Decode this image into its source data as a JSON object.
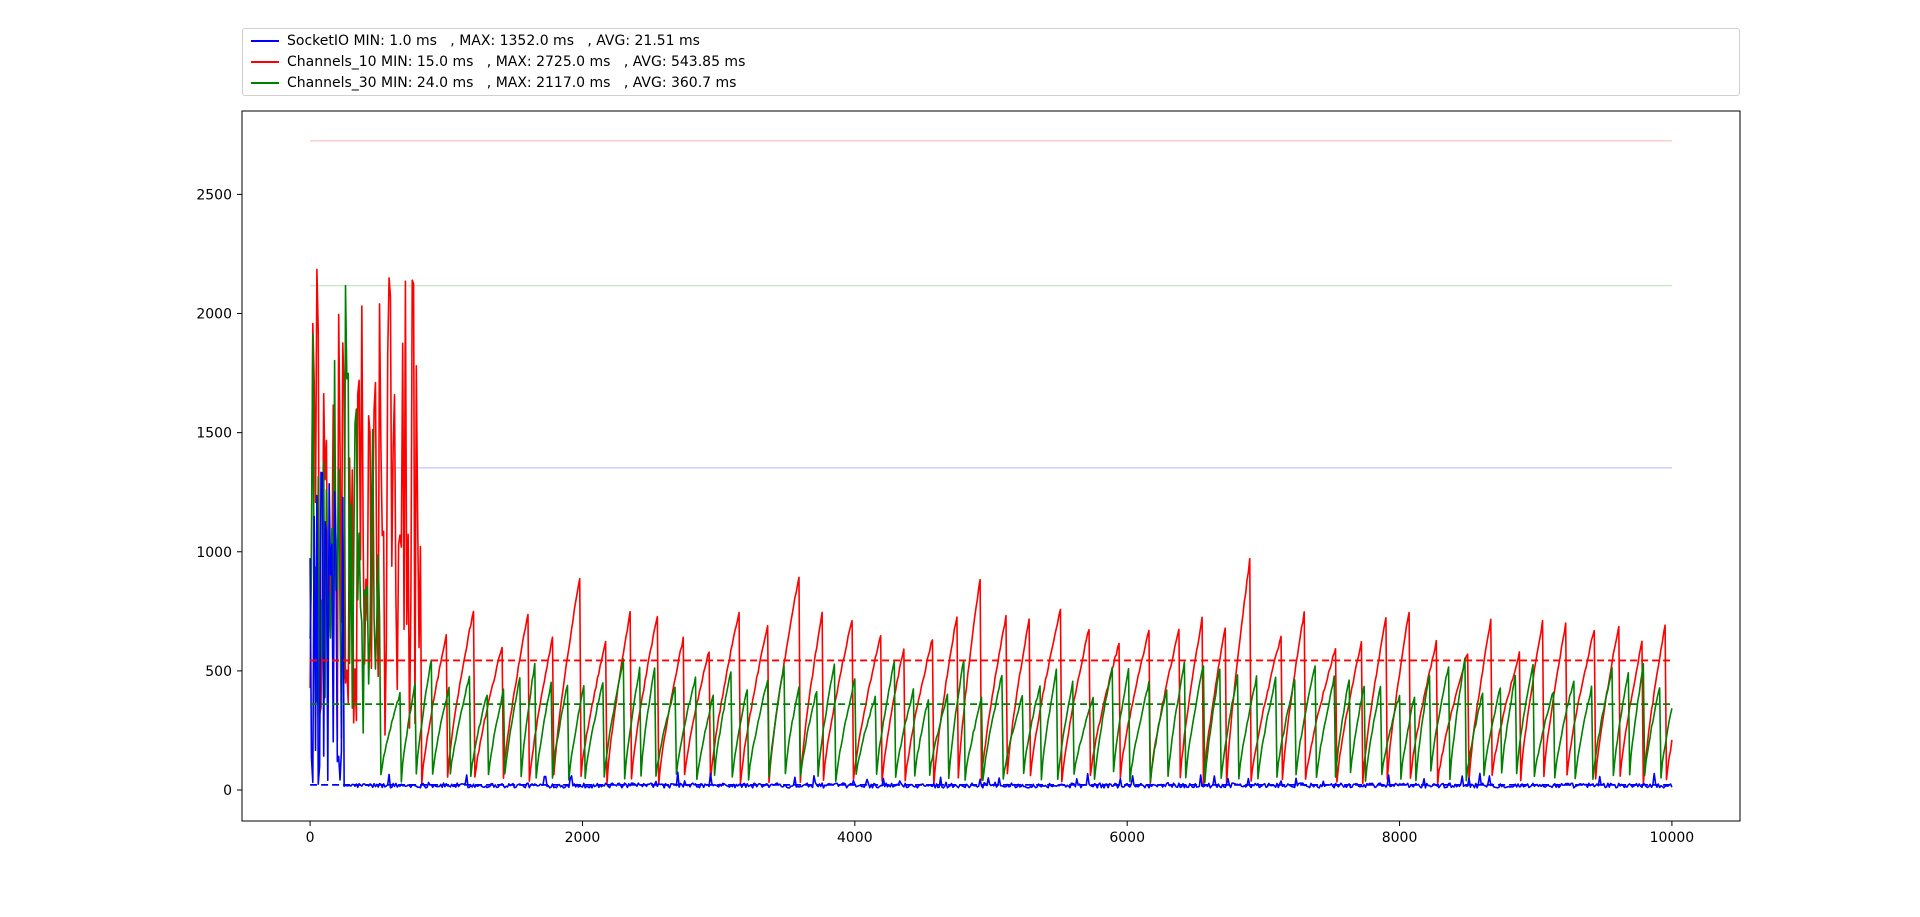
{
  "chart_data": {
    "type": "line",
    "title": "",
    "xlabel": "",
    "ylabel": "",
    "xlim": [
      -500,
      10500
    ],
    "ylim": [
      -130,
      2850
    ],
    "x_ticks": [
      0,
      2000,
      4000,
      6000,
      8000,
      10000
    ],
    "x_tick_labels": [
      "0",
      "2000",
      "4000",
      "6000",
      "8000",
      "10000"
    ],
    "y_ticks": [
      0,
      500,
      1000,
      1500,
      2000,
      2500
    ],
    "y_tick_labels": [
      "0",
      "500",
      "1000",
      "1500",
      "2000",
      "2500"
    ],
    "grid": false,
    "legend_position": "top, above plot",
    "n_points": 10000,
    "series": [
      {
        "name": "SocketIO",
        "legend_label": "SocketIO MIN: 1.0 ms   , MAX: 1352.0 ms   , AVG: 21.51 ms",
        "color": "#0000ff",
        "min": 1.0,
        "max": 1352.0,
        "avg": 21.51
      },
      {
        "name": "Channels_10",
        "legend_label": "Channels_10 MIN: 15.0 ms   , MAX: 2725.0 ms   , AVG: 543.85 ms",
        "color": "#ff0000",
        "min": 15.0,
        "max": 2725.0,
        "avg": 543.85
      },
      {
        "name": "Channels_30",
        "legend_label": "Channels_30 MIN: 24.0 ms   , MAX: 2117.0 ms   , AVG: 360.7 ms",
        "color": "#008000",
        "min": 24.0,
        "max": 2117.0,
        "avg": 360.7
      }
    ]
  }
}
